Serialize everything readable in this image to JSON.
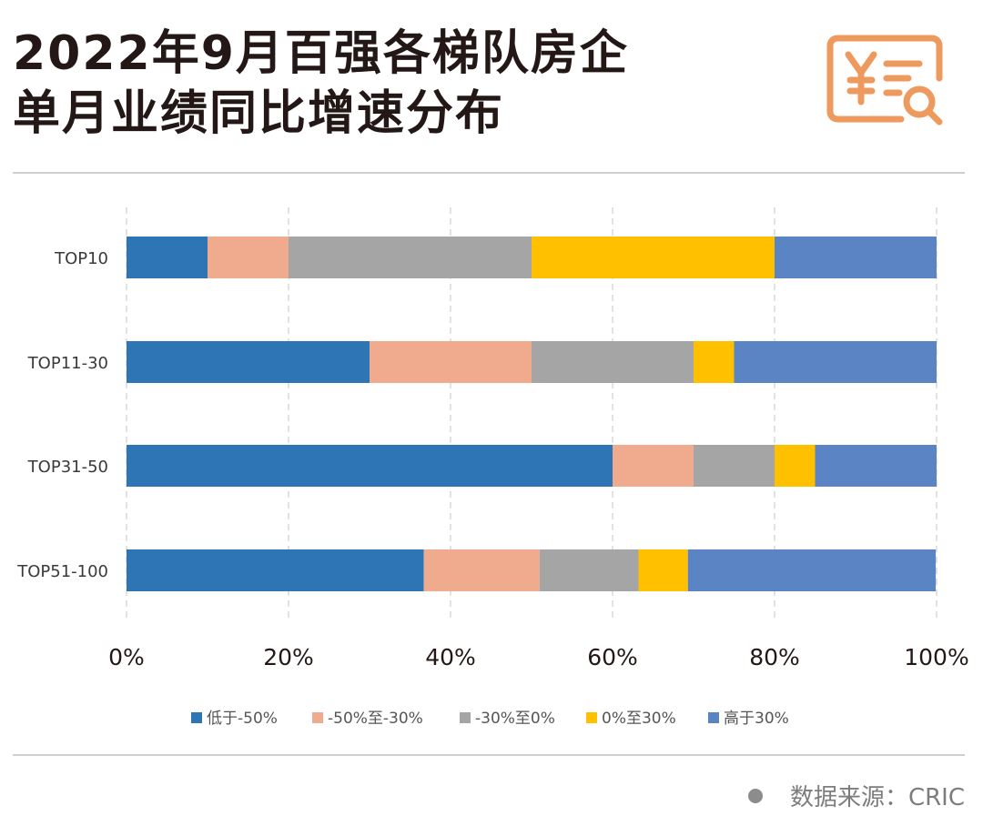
{
  "title": {
    "line1": "2022年9月百强各梯队房企",
    "line2": "单月业绩同比增速分布"
  },
  "source": "数据来源：CRIC",
  "icons": {
    "logo": "yuan-document-search-icon",
    "source_dot": "circle-icon"
  },
  "colors": {
    "logo": "#EE9A5E",
    "rule": "#CFCFCF",
    "grid": "#D9D9D9",
    "text": "#231815"
  },
  "chart_data": {
    "type": "bar",
    "orientation": "horizontal",
    "stacked": true,
    "categories": [
      "TOP10",
      "TOP11-30",
      "TOP31-50",
      "TOP51-100"
    ],
    "series": [
      {
        "name": "低于-50%",
        "color": "#2E75B6",
        "values": [
          10,
          30,
          60,
          36.7
        ]
      },
      {
        "name": "-50%至-30%",
        "color": "#F0AA8E",
        "values": [
          10,
          20,
          10,
          14.3
        ]
      },
      {
        "name": "-30%至0%",
        "color": "#A5A5A5",
        "values": [
          30,
          20,
          10,
          12.2
        ]
      },
      {
        "name": "0%至30%",
        "color": "#FFC000",
        "values": [
          30,
          5,
          5,
          6.1
        ]
      },
      {
        "name": "高于30%",
        "color": "#5B84C4",
        "values": [
          20,
          25,
          15,
          30.6
        ]
      }
    ],
    "xlim": [
      0,
      100
    ],
    "xticks": [
      "0%",
      "20%",
      "40%",
      "60%",
      "80%",
      "100%"
    ],
    "grid": "vertical dashed",
    "legend": "bottom"
  }
}
